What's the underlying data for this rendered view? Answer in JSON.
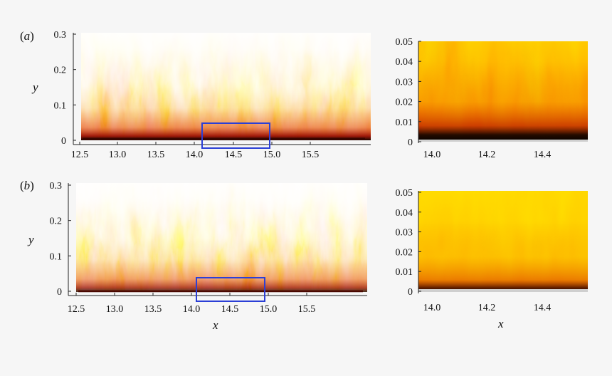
{
  "figure": {
    "panel_a_label": "(a)",
    "panel_b_label": "(b)",
    "colors": {
      "dark": "#1a0500",
      "red": "#c41a00",
      "orange": "#f05a00",
      "yellow": "#ffcc00",
      "pale": "#fff8d0",
      "box": "#2b3fd6"
    }
  },
  "chart_data": [
    {
      "type": "heatmap",
      "panel": "a-full",
      "xlabel": "",
      "ylabel": "y",
      "xlim": [
        12.6,
        15.6
      ],
      "ylim": [
        0,
        0.3
      ],
      "xticks": [
        "12.5",
        "13.0",
        "13.5",
        "14.0",
        "14.5",
        "15.0",
        "15.5"
      ],
      "yticks": [
        "0",
        "0.1",
        "0.2",
        "0.3"
      ],
      "zoom_box": {
        "x": [
          13.95,
          14.6
        ],
        "y": [
          -0.02,
          0.05
        ]
      }
    },
    {
      "type": "heatmap",
      "panel": "a-zoom",
      "xlabel": "",
      "ylabel": "",
      "xlim": [
        13.95,
        14.55
      ],
      "ylim": [
        0,
        0.05
      ],
      "xticks": [
        "14.0",
        "14.2",
        "14.4"
      ],
      "yticks": [
        "0",
        "0.01",
        "0.02",
        "0.03",
        "0.04",
        "0.05"
      ]
    },
    {
      "type": "heatmap",
      "panel": "b-full",
      "xlabel": "x",
      "ylabel": "y",
      "xlim": [
        12.6,
        15.6
      ],
      "ylim": [
        0,
        0.3
      ],
      "xticks": [
        "12.5",
        "13.0",
        "13.5",
        "14.0",
        "14.5",
        "15.0",
        "15.5"
      ],
      "yticks": [
        "0",
        "0.1",
        "0.2",
        "0.3"
      ],
      "zoom_box": {
        "x": [
          13.88,
          14.6
        ],
        "y": [
          -0.02,
          0.04
        ]
      }
    },
    {
      "type": "heatmap",
      "panel": "b-zoom",
      "xlabel": "x",
      "ylabel": "",
      "xlim": [
        13.95,
        14.55
      ],
      "ylim": [
        0,
        0.05
      ],
      "xticks": [
        "14.0",
        "14.2",
        "14.4"
      ],
      "yticks": [
        "0",
        "0.01",
        "0.02",
        "0.03",
        "0.04",
        "0.05"
      ]
    }
  ]
}
